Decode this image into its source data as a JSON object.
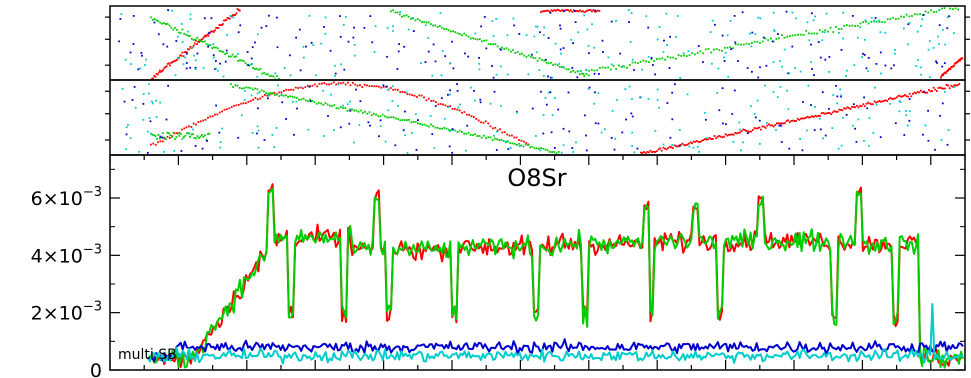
{
  "chart_data": [
    {
      "type": "scatter",
      "panel": "top",
      "description_colors": [
        "#ff0000",
        "#00cc00",
        "#0000cc",
        "#00cccc"
      ],
      "series": [
        {
          "color": "#ff0000",
          "trend": "diagonal fragments"
        },
        {
          "color": "#00cc00",
          "trend": "diagonal fragments"
        },
        {
          "color": "#0000cc",
          "trend": "random"
        },
        {
          "color": "#00cccc",
          "trend": "random"
        }
      ]
    },
    {
      "type": "scatter",
      "panel": "middle",
      "series": [
        {
          "color": "#ff0000",
          "trend": "arc and rising"
        },
        {
          "color": "#00cc00",
          "trend": "falling diagonal"
        },
        {
          "color": "#0000cc",
          "trend": "random"
        },
        {
          "color": "#00cccc",
          "trend": "random"
        }
      ]
    },
    {
      "type": "line",
      "panel": "main",
      "title": "O8Sr",
      "annotation": "multi SB",
      "ylim": [
        0,
        0.0075
      ],
      "yticks": [
        {
          "label": "0",
          "value": 0,
          "base": "0",
          "exp": ""
        },
        {
          "label": "2×10⁻³",
          "value": 0.002,
          "base": "2×10",
          "exp": "−3"
        },
        {
          "label": "4×10⁻³",
          "value": 0.004,
          "base": "4×10",
          "exp": "−3"
        },
        {
          "label": "6×10⁻³",
          "value": 0.006,
          "base": "6×10",
          "exp": "−3"
        }
      ],
      "x_count": 400,
      "segments": [
        {
          "start": 0,
          "end": 22,
          "level": 0.0004
        },
        {
          "start": 22,
          "end": 62,
          "level": 0.0045,
          "ramp": true
        },
        {
          "start": 62,
          "end": 100,
          "level": 0.0046
        },
        {
          "start": 100,
          "end": 150,
          "level": 0.0042
        },
        {
          "start": 150,
          "end": 200,
          "level": 0.0043
        },
        {
          "start": 200,
          "end": 250,
          "level": 0.0044
        },
        {
          "start": 250,
          "end": 300,
          "level": 0.0045
        },
        {
          "start": 300,
          "end": 350,
          "level": 0.0045
        },
        {
          "start": 350,
          "end": 378,
          "level": 0.0044
        },
        {
          "start": 378,
          "end": 400,
          "level": 0.0004
        }
      ],
      "series": [
        {
          "color": "#ff0000",
          "kind": "high"
        },
        {
          "color": "#00cc00",
          "kind": "high"
        },
        {
          "color": "#0000cc",
          "kind": "low",
          "level": 0.0008
        },
        {
          "color": "#00cccc",
          "kind": "low",
          "level": 0.0005
        }
      ]
    }
  ]
}
